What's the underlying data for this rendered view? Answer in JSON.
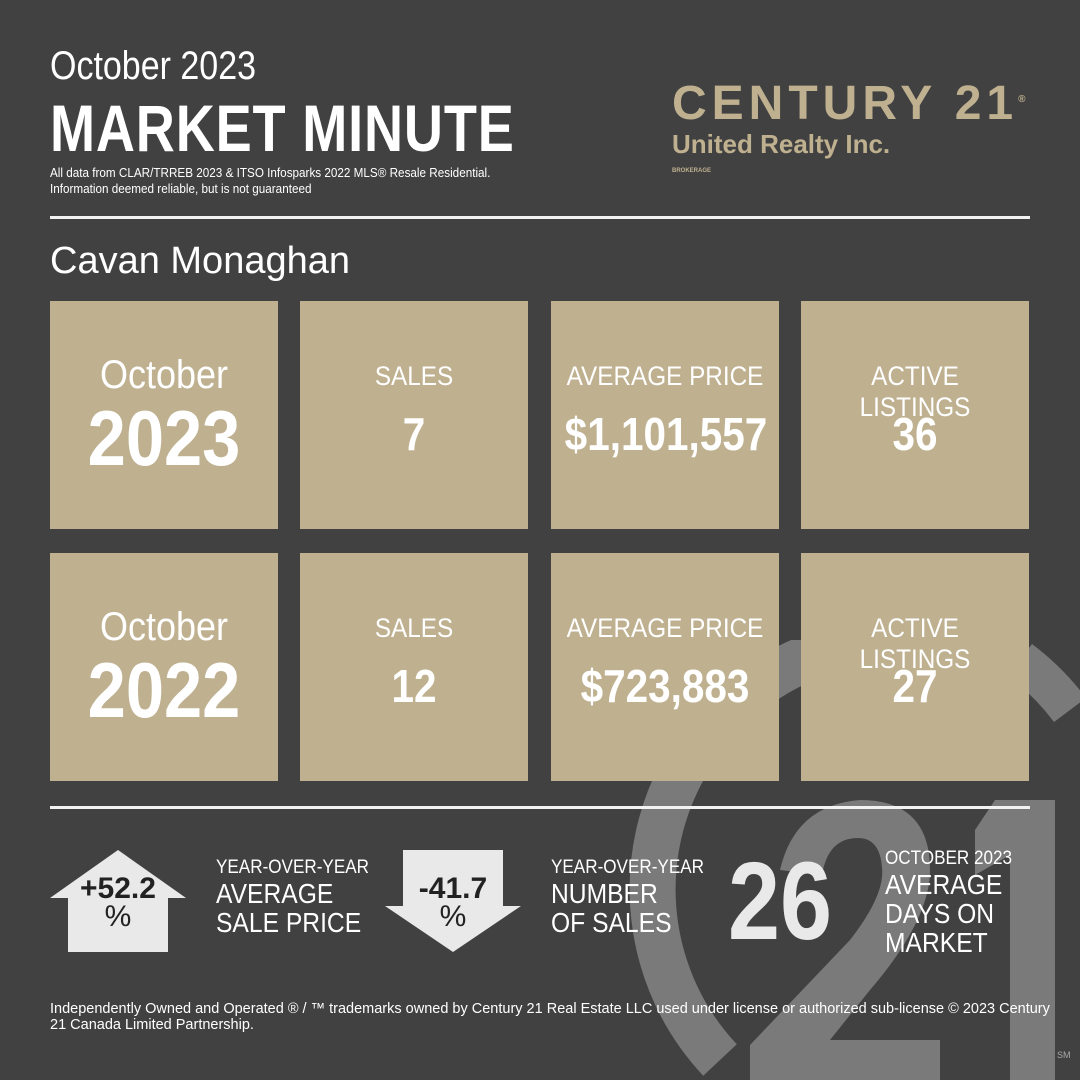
{
  "header": {
    "month_year": "October 2023",
    "title": "MARKET MINUTE",
    "disclaimer_line1": "All data from CLAR/TRREB 2023 & ITSO Infosparks 2022 MLS® Resale  Residential.",
    "disclaimer_line2": "Information deemed reliable, but is not guaranteed"
  },
  "logo": {
    "line1": "CENTURY 21",
    "mark": "®",
    "line2": "United Realty Inc.",
    "line3": "BROKERAGE"
  },
  "area": "Cavan Monaghan",
  "rows": [
    {
      "month": "October",
      "year": "2023",
      "stats": [
        {
          "label": "SALES",
          "value": "7"
        },
        {
          "label": "AVERAGE PRICE",
          "value": "$1,101,557"
        },
        {
          "label": "ACTIVE LISTINGS",
          "value": "36"
        }
      ]
    },
    {
      "month": "October",
      "year": "2022",
      "stats": [
        {
          "label": "SALES",
          "value": "12"
        },
        {
          "label": "AVERAGE PRICE",
          "value": "$723,883"
        },
        {
          "label": "ACTIVE LISTINGS",
          "value": "27"
        }
      ]
    }
  ],
  "summary": {
    "price_change": {
      "value": "+52.2",
      "unit": "%",
      "direction": "up",
      "label_small": "YEAR-OVER-YEAR",
      "label_line1": "AVERAGE",
      "label_line2": "SALE PRICE"
    },
    "sales_change": {
      "value": "-41.7",
      "unit": "%",
      "direction": "down",
      "label_small": "YEAR-OVER-YEAR",
      "label_line1": "NUMBER",
      "label_line2": "OF SALES"
    },
    "days_on_market": {
      "value": "26",
      "label_small": "OCTOBER 2023",
      "label_line1": "AVERAGE",
      "label_line2": "DAYS ON",
      "label_line3": "MARKET"
    }
  },
  "footer": "Independently Owned and Operated ® / ™ trademarks owned by Century 21 Real Estate LLC used under license or authorized sub-license © 2023 Century 21 Canada Limited Partnership.",
  "watermark": {
    "text": "21",
    "mark": "SM"
  },
  "colors": {
    "background": "#414141",
    "tile": "#bfb190",
    "arrow": "#e9e9e9",
    "watermark": "#7a7a7a"
  }
}
